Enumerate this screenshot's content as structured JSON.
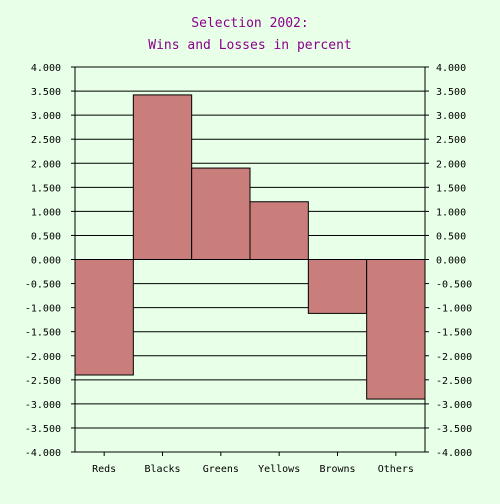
{
  "chart_data": {
    "type": "bar",
    "title_line1": "Selection 2002:",
    "title_line2": "Wins and Losses in percent",
    "categories": [
      "Reds",
      "Blacks",
      "Greens",
      "Yellows",
      "Browns",
      "Others"
    ],
    "values": [
      -2.4,
      3.42,
      1.9,
      1.2,
      -1.12,
      -2.9
    ],
    "ylim": [
      -4,
      4
    ],
    "ytick_step": 0.5,
    "ytick_labels": [
      "4.000",
      "3.500",
      "3.000",
      "2.500",
      "2.000",
      "1.500",
      "1.000",
      "0.500",
      "0.000",
      "-0.500",
      "-1.000",
      "-1.500",
      "-2.000",
      "-2.500",
      "-3.000",
      "-3.500",
      "-4.000"
    ],
    "grid": true,
    "right_axis": true,
    "colors": {
      "background": "#e8ffe8",
      "bar_fill": "#c97e7c",
      "bar_stroke": "#000000",
      "title": "#8b008b",
      "axis": "#000000"
    }
  }
}
